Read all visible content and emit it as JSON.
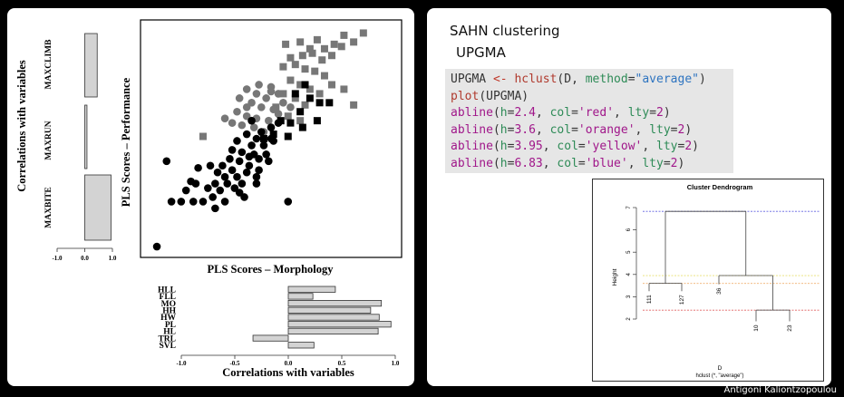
{
  "footer": {
    "author": "Antigoni Kaliontzopoulou"
  },
  "left_slide": {
    "scatter": {
      "xlabel": "PLS Scores – Morphology",
      "ylabel": "PLS Scores – Performance",
      "colors": {
        "black_group": "#000000",
        "gray_group": "#777777"
      },
      "chart_data": {
        "type": "scatter",
        "xlim": [
          0,
          1
        ],
        "ylim": [
          0,
          1
        ],
        "series": [
          {
            "marker": "square",
            "color": "#777777",
            "points": [
              [
                0.56,
                0.92
              ],
              [
                0.62,
                0.93
              ],
              [
                0.66,
                0.9
              ],
              [
                0.69,
                0.94
              ],
              [
                0.72,
                0.9
              ],
              [
                0.76,
                0.92
              ],
              [
                0.8,
                0.96
              ],
              [
                0.84,
                0.93
              ],
              [
                0.88,
                0.97
              ],
              [
                0.58,
                0.86
              ],
              [
                0.63,
                0.87
              ],
              [
                0.67,
                0.88
              ],
              [
                0.71,
                0.85
              ],
              [
                0.75,
                0.87
              ],
              [
                0.79,
                0.91
              ],
              [
                0.55,
                0.82
              ],
              [
                0.6,
                0.83
              ],
              [
                0.64,
                0.81
              ],
              [
                0.68,
                0.8
              ],
              [
                0.72,
                0.78
              ],
              [
                0.58,
                0.76
              ],
              [
                0.62,
                0.74
              ],
              [
                0.66,
                0.72
              ],
              [
                0.7,
                0.7
              ],
              [
                0.75,
                0.74
              ],
              [
                0.8,
                0.72
              ],
              [
                0.55,
                0.7
              ],
              [
                0.6,
                0.68
              ],
              [
                0.64,
                0.65
              ],
              [
                0.52,
                0.64
              ],
              [
                0.57,
                0.6
              ],
              [
                0.62,
                0.58
              ],
              [
                0.84,
                0.65
              ],
              [
                0.22,
                0.51
              ]
            ]
          },
          {
            "marker": "circle",
            "color": "#777777",
            "points": [
              [
                0.4,
                0.72
              ],
              [
                0.45,
                0.74
              ],
              [
                0.5,
                0.73
              ],
              [
                0.48,
                0.68
              ],
              [
                0.53,
                0.7
              ],
              [
                0.42,
                0.66
              ],
              [
                0.46,
                0.64
              ],
              [
                0.51,
                0.63
              ],
              [
                0.55,
                0.66
              ],
              [
                0.4,
                0.6
              ],
              [
                0.44,
                0.59
              ],
              [
                0.49,
                0.58
              ],
              [
                0.53,
                0.61
              ],
              [
                0.36,
                0.62
              ],
              [
                0.38,
                0.56
              ],
              [
                0.43,
                0.55
              ],
              [
                0.47,
                0.53
              ],
              [
                0.34,
                0.57
              ],
              [
                0.5,
                0.71
              ],
              [
                0.44,
                0.7
              ],
              [
                0.4,
                0.64
              ],
              [
                0.58,
                0.64
              ],
              [
                0.37,
                0.68
              ],
              [
                0.31,
                0.59
              ]
            ]
          },
          {
            "marker": "square",
            "color": "#000000",
            "points": [
              [
                0.6,
                0.7
              ],
              [
                0.66,
                0.68
              ],
              [
                0.7,
                0.66
              ],
              [
                0.74,
                0.66
              ],
              [
                0.62,
                0.62
              ],
              [
                0.58,
                0.57
              ],
              [
                0.54,
                0.58
              ],
              [
                0.57,
                0.51
              ],
              [
                0.51,
                0.52
              ],
              [
                0.69,
                0.58
              ],
              [
                0.63,
                0.55
              ],
              [
                0.47,
                0.5
              ],
              [
                0.64,
                0.74
              ]
            ]
          },
          {
            "marker": "circle",
            "color": "#000000",
            "points": [
              [
                0.53,
                0.57
              ],
              [
                0.5,
                0.55
              ],
              [
                0.46,
                0.53
              ],
              [
                0.44,
                0.5
              ],
              [
                0.4,
                0.52
              ],
              [
                0.36,
                0.49
              ],
              [
                0.42,
                0.47
              ],
              [
                0.47,
                0.47
              ],
              [
                0.51,
                0.49
              ],
              [
                0.34,
                0.45
              ],
              [
                0.38,
                0.44
              ],
              [
                0.43,
                0.43
              ],
              [
                0.48,
                0.43
              ],
              [
                0.33,
                0.41
              ],
              [
                0.37,
                0.4
              ],
              [
                0.41,
                0.38
              ],
              [
                0.45,
                0.41
              ],
              [
                0.3,
                0.38
              ],
              [
                0.34,
                0.36
              ],
              [
                0.4,
                0.35
              ],
              [
                0.45,
                0.36
              ],
              [
                0.28,
                0.35
              ],
              [
                0.31,
                0.33
              ],
              [
                0.36,
                0.33
              ],
              [
                0.44,
                0.33
              ],
              [
                0.38,
                0.3
              ],
              [
                0.32,
                0.3
              ],
              [
                0.27,
                0.3
              ],
              [
                0.41,
                0.42
              ],
              [
                0.49,
                0.4
              ],
              [
                0.25,
                0.38
              ],
              [
                0.2,
                0.37
              ],
              [
                0.17,
                0.31
              ],
              [
                0.24,
                0.28
              ],
              [
                0.29,
                0.27
              ],
              [
                0.26,
                0.24
              ],
              [
                0.22,
                0.22
              ],
              [
                0.18,
                0.22
              ],
              [
                0.13,
                0.22
              ],
              [
                0.09,
                0.22
              ],
              [
                0.37,
                0.26
              ],
              [
                0.31,
                0.22
              ],
              [
                0.27,
                0.19
              ],
              [
                0.19,
                0.3
              ],
              [
                0.07,
                0.4
              ],
              [
                0.35,
                0.28
              ],
              [
                0.15,
                0.27
              ],
              [
                0.39,
                0.24
              ],
              [
                0.44,
                0.3
              ],
              [
                0.57,
                0.22
              ],
              [
                0.5,
                0.5
              ],
              [
                0.42,
                0.58
              ],
              [
                0.03,
                0.02
              ]
            ]
          }
        ]
      }
    },
    "perf_bars": {
      "ylabel": "Correlations with variables",
      "chart_data": {
        "type": "bar",
        "orientation": "vertical",
        "categories": [
          "MAXBITE",
          "MAXRUN",
          "MAXCLIMB"
        ],
        "values": [
          0.95,
          0.08,
          0.45
        ],
        "xlim": [
          -1.0,
          1.0
        ],
        "xticks": [
          "-1.0",
          "0.0",
          "1.0"
        ]
      }
    },
    "morph_bars": {
      "xlabel": "Correlations with variables",
      "chart_data": {
        "type": "bar",
        "orientation": "horizontal",
        "categories": [
          "HLL",
          "FLL",
          "MO",
          "HH",
          "HW",
          "PL",
          "HL",
          "TRL",
          "SVL"
        ],
        "values": [
          0.44,
          0.23,
          0.87,
          0.77,
          0.85,
          0.96,
          0.84,
          -0.33,
          0.24
        ],
        "xlim": [
          -1.0,
          1.0
        ],
        "xticks": [
          "-1.0",
          "-0.5",
          "0.0",
          "0.5",
          "1.0"
        ]
      }
    }
  },
  "right_slide": {
    "title": "SAHN clustering",
    "subtitle": "UPGMA",
    "code_lines": [
      [
        [
          "kw-plain",
          "UPGMA "
        ],
        [
          "kw-op",
          "<-"
        ],
        [
          "kw-plain",
          " "
        ],
        [
          "kw-fn",
          "hclust"
        ],
        [
          "kw-plain",
          "(D, "
        ],
        [
          "kw-arg",
          "method"
        ],
        [
          "kw-plain",
          "="
        ],
        [
          "kw-str",
          "\"average\""
        ],
        [
          "kw-plain",
          ")"
        ]
      ],
      [
        [
          "kw-fn",
          "plot"
        ],
        [
          "kw-plain",
          "(UPGMA)"
        ]
      ],
      [
        [
          "kw-ab",
          "abline"
        ],
        [
          "kw-plain",
          "("
        ],
        [
          "kw-arg",
          "h"
        ],
        [
          "kw-plain",
          "="
        ],
        [
          "kw-ab",
          "2.4"
        ],
        [
          "kw-plain",
          ", "
        ],
        [
          "kw-arg",
          "col"
        ],
        [
          "kw-plain",
          "="
        ],
        [
          "kw-ab",
          "'red'"
        ],
        [
          "kw-plain",
          ", "
        ],
        [
          "kw-arg",
          "lty"
        ],
        [
          "kw-plain",
          "="
        ],
        [
          "kw-ab",
          "2"
        ],
        [
          "kw-plain",
          ")"
        ]
      ],
      [
        [
          "kw-ab",
          "abline"
        ],
        [
          "kw-plain",
          "("
        ],
        [
          "kw-arg",
          "h"
        ],
        [
          "kw-plain",
          "="
        ],
        [
          "kw-ab",
          "3.6"
        ],
        [
          "kw-plain",
          ", "
        ],
        [
          "kw-arg",
          "col"
        ],
        [
          "kw-plain",
          "="
        ],
        [
          "kw-ab",
          "'orange'"
        ],
        [
          "kw-plain",
          ", "
        ],
        [
          "kw-arg",
          "lty"
        ],
        [
          "kw-plain",
          "="
        ],
        [
          "kw-ab",
          "2"
        ],
        [
          "kw-plain",
          ")"
        ]
      ],
      [
        [
          "kw-ab",
          "abline"
        ],
        [
          "kw-plain",
          "("
        ],
        [
          "kw-arg",
          "h"
        ],
        [
          "kw-plain",
          "="
        ],
        [
          "kw-ab",
          "3.95"
        ],
        [
          "kw-plain",
          ", "
        ],
        [
          "kw-arg",
          "col"
        ],
        [
          "kw-plain",
          "="
        ],
        [
          "kw-ab",
          "'yellow'"
        ],
        [
          "kw-plain",
          ", "
        ],
        [
          "kw-arg",
          "lty"
        ],
        [
          "kw-plain",
          "="
        ],
        [
          "kw-ab",
          "2"
        ],
        [
          "kw-plain",
          ")"
        ]
      ],
      [
        [
          "kw-ab",
          "abline"
        ],
        [
          "kw-plain",
          "("
        ],
        [
          "kw-arg",
          "h"
        ],
        [
          "kw-plain",
          "="
        ],
        [
          "kw-ab",
          "6.83"
        ],
        [
          "kw-plain",
          ", "
        ],
        [
          "kw-arg",
          "col"
        ],
        [
          "kw-plain",
          "="
        ],
        [
          "kw-ab",
          "'blue'"
        ],
        [
          "kw-plain",
          ", "
        ],
        [
          "kw-arg",
          "lty"
        ],
        [
          "kw-plain",
          "="
        ],
        [
          "kw-ab",
          "2"
        ],
        [
          "kw-plain",
          ")"
        ]
      ]
    ],
    "dendrogram": {
      "title": "Cluster Dendrogram",
      "ylabel": "Height",
      "xlabel": "D",
      "sub": "hclust (*, \"average\")",
      "chart_data": {
        "type": "dendrogram",
        "ylim": [
          2,
          7
        ],
        "yticks": [
          "2",
          "3",
          "4",
          "5",
          "6",
          "7"
        ],
        "leaves": [
          "111",
          "127",
          "36",
          "10",
          "23"
        ],
        "leaf_heights": [
          3.25,
          3.25,
          3.56,
          1.9,
          1.9
        ],
        "merges": [
          {
            "left": "111",
            "right": "127",
            "height": 3.6
          },
          {
            "left": "10",
            "right": "23",
            "height": 2.4
          },
          {
            "left": "36",
            "right": "10+23",
            "height": 3.95
          },
          {
            "left": "111+127",
            "right": "36+10+23",
            "height": 6.83
          }
        ],
        "cut_lines": [
          {
            "h": 2.4,
            "color": "#e06060"
          },
          {
            "h": 3.6,
            "color": "#f0b070"
          },
          {
            "h": 3.95,
            "color": "#e8e070"
          },
          {
            "h": 6.83,
            "color": "#6060e0"
          }
        ]
      }
    }
  }
}
